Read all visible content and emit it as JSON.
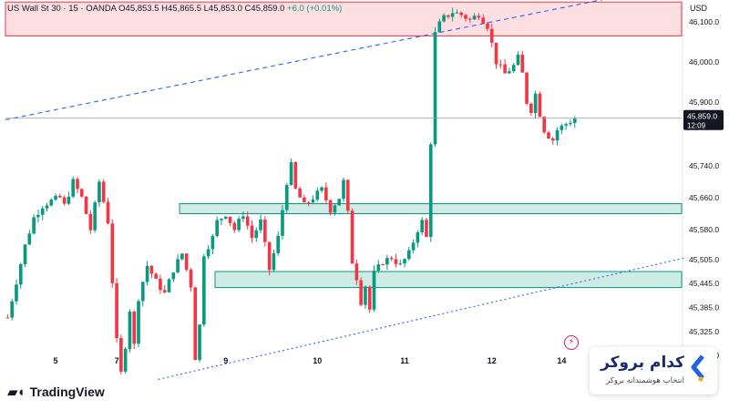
{
  "header": {
    "symbol": "US Wall St 30 · 15 · OANDA",
    "open": "O45,853.5",
    "high": "H45,865.5",
    "low": "L45,853.0",
    "close": "C45,859.0",
    "change": "+6.0 (+0.01%)"
  },
  "currency": "USD",
  "brand": {
    "name": "TradingView",
    "icon": "TV-logo-icon"
  },
  "broker": {
    "title": "کدام بروکر",
    "subtitle": "انتخاب هوشمندانه بروکر",
    "logo": "chevron-logo-icon"
  },
  "colors": {
    "up": "#089981",
    "down": "#f23645",
    "zone_red": "#f23645",
    "zone_green": "#089981",
    "trendline": "#2962ff",
    "price_line": "#131722"
  },
  "chart_data": {
    "type": "candlestick",
    "title": "",
    "xlabel": "",
    "ylabel": "",
    "ylim": [
      45215,
      46155
    ],
    "x_ticks": [
      "5",
      "7",
      "9",
      "10",
      "11",
      "12",
      "14"
    ],
    "y_ticks": [
      "46,100.0",
      "46,000.0",
      "45,900.0",
      "45,740.0",
      "45,660.0",
      "45,580.0",
      "45,505.0",
      "45,445.0",
      "45,385.0",
      "45,325.0",
      "45,265.0"
    ],
    "last_price": {
      "value": "45,859.0",
      "countdown": "12:09",
      "price": 45859
    },
    "path": [
      [
        0,
        45360
      ],
      [
        2,
        45450
      ],
      [
        4,
        45540
      ],
      [
        6,
        45610
      ],
      [
        8,
        45640
      ],
      [
        10,
        45652
      ],
      [
        12,
        45660
      ],
      [
        13,
        45640
      ],
      [
        15,
        45700
      ],
      [
        17,
        45660
      ],
      [
        19,
        45580
      ],
      [
        21,
        45700
      ],
      [
        23,
        45600
      ],
      [
        25,
        45300
      ],
      [
        26,
        45220
      ],
      [
        27,
        45290
      ],
      [
        28,
        45380
      ],
      [
        29,
        45290
      ],
      [
        30,
        45410
      ],
      [
        32,
        45490
      ],
      [
        34,
        45450
      ],
      [
        36,
        45420
      ],
      [
        38,
        45480
      ],
      [
        40,
        45520
      ],
      [
        42,
        45440
      ],
      [
        43,
        45260
      ],
      [
        44,
        45340
      ],
      [
        45,
        45520
      ],
      [
        47,
        45560
      ],
      [
        48,
        45600
      ],
      [
        50,
        45620
      ],
      [
        52,
        45580
      ],
      [
        54,
        45620
      ],
      [
        56,
        45560
      ],
      [
        58,
        45600
      ],
      [
        60,
        45480
      ],
      [
        62,
        45560
      ],
      [
        64,
        45700
      ],
      [
        65,
        45740
      ],
      [
        66,
        45680
      ],
      [
        68,
        45640
      ],
      [
        70,
        45660
      ],
      [
        72,
        45680
      ],
      [
        74,
        45630
      ],
      [
        76,
        45660
      ],
      [
        77,
        45700
      ],
      [
        78,
        45620
      ],
      [
        79,
        45500
      ],
      [
        80,
        45460
      ],
      [
        81,
        45400
      ],
      [
        82,
        45440
      ],
      [
        83,
        45380
      ],
      [
        84,
        45470
      ],
      [
        86,
        45500
      ],
      [
        88,
        45510
      ],
      [
        90,
        45490
      ],
      [
        92,
        45520
      ],
      [
        94,
        45580
      ],
      [
        95,
        45600
      ],
      [
        96,
        45560
      ],
      [
        97,
        45800
      ],
      [
        98,
        46070
      ],
      [
        99,
        46095
      ],
      [
        100,
        46110
      ],
      [
        102,
        46125
      ],
      [
        104,
        46118
      ],
      [
        106,
        46105
      ],
      [
        108,
        46120
      ],
      [
        110,
        46090
      ],
      [
        112,
        46000
      ],
      [
        114,
        45970
      ],
      [
        116,
        45990
      ],
      [
        117,
        46010
      ],
      [
        118,
        45970
      ],
      [
        119,
        45900
      ],
      [
        120,
        45880
      ],
      [
        121,
        45920
      ],
      [
        122,
        45870
      ],
      [
        123,
        45830
      ],
      [
        124,
        45815
      ],
      [
        125,
        45805
      ],
      [
        126,
        45830
      ],
      [
        128,
        45845
      ],
      [
        130,
        45858
      ]
    ],
    "zones": [
      {
        "kind": "resistance",
        "from": 46065,
        "to": 46150
      },
      {
        "kind": "demand",
        "from": 45620,
        "to": 45645
      },
      {
        "kind": "demand",
        "from": 45435,
        "to": 45475
      }
    ],
    "trendlines": [
      {
        "style": "dashed",
        "from": [
          0,
          45855
        ],
        "to": [
          155,
          46198
        ]
      },
      {
        "style": "dotted",
        "from": [
          35,
          45205
        ],
        "to": [
          155,
          45510
        ]
      }
    ]
  }
}
